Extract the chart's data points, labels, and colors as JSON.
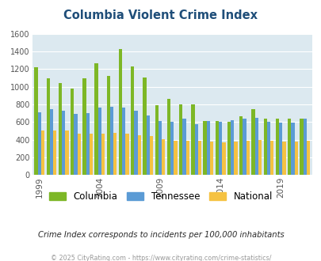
{
  "title": "Columbia Violent Crime Index",
  "subtitle": "Crime Index corresponds to incidents per 100,000 inhabitants",
  "footer": "© 2025 CityRating.com - https://www.cityrating.com/crime-statistics/",
  "years": [
    1999,
    2000,
    2001,
    2002,
    2003,
    2004,
    2005,
    2006,
    2007,
    2008,
    2009,
    2010,
    2011,
    2012,
    2013,
    2014,
    2015,
    2016,
    2017,
    2018,
    2019,
    2020,
    2021
  ],
  "columbia": [
    1225,
    1100,
    1045,
    980,
    1100,
    1270,
    1120,
    1430,
    1235,
    1105,
    795,
    860,
    800,
    800,
    615,
    610,
    600,
    665,
    745,
    640,
    635,
    635,
    635
  ],
  "tennessee": [
    710,
    750,
    725,
    690,
    705,
    760,
    770,
    760,
    730,
    670,
    615,
    600,
    640,
    580,
    610,
    605,
    620,
    640,
    645,
    600,
    595,
    595,
    635
  ],
  "national": [
    500,
    500,
    500,
    470,
    465,
    470,
    480,
    465,
    450,
    440,
    405,
    390,
    385,
    390,
    375,
    370,
    375,
    385,
    395,
    385,
    380,
    380,
    385
  ],
  "columbia_color": "#7db726",
  "tennessee_color": "#5b9bd5",
  "national_color": "#f5c242",
  "bg_color": "#dce9f0",
  "ylim": [
    0,
    1600
  ],
  "yticks": [
    0,
    200,
    400,
    600,
    800,
    1000,
    1200,
    1400,
    1600
  ],
  "xtick_years": [
    1999,
    2004,
    2009,
    2014,
    2019
  ],
  "title_color": "#1f4e79",
  "subtitle_color": "#2a2a2a",
  "footer_color": "#999999",
  "legend_labels": [
    "Columbia",
    "Tennessee",
    "National"
  ]
}
